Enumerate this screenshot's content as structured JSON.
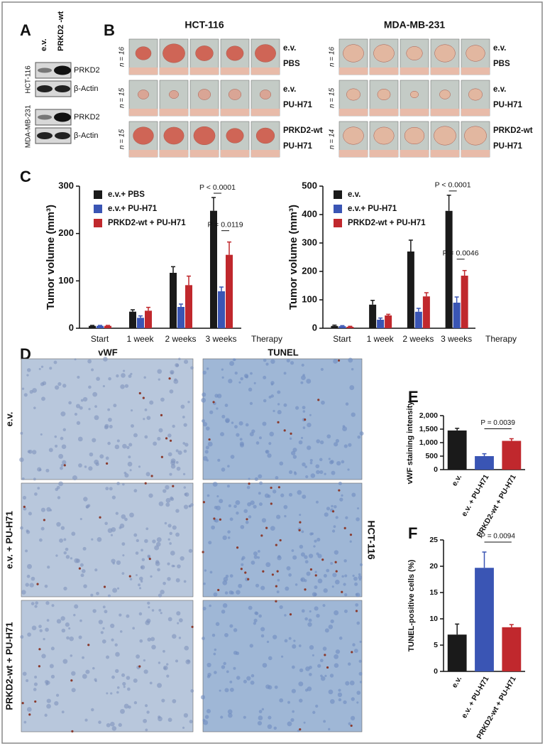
{
  "panel_a": {
    "letter": "A",
    "lanes": [
      "e.v.",
      "PRKD2 -wt"
    ],
    "blots": [
      {
        "cell_line": "HCT-116",
        "bands": [
          "PRKD2",
          "β-Actin"
        ]
      },
      {
        "cell_line": "MDA-MB-231",
        "bands": [
          "PRKD2",
          "β-Actin"
        ]
      }
    ]
  },
  "panel_b": {
    "letter": "B",
    "groups": [
      {
        "title": "HCT-116",
        "rows": [
          {
            "n": "n = 16",
            "labels": [
              "e.v.",
              "PBS"
            ]
          },
          {
            "n": "n = 15",
            "labels": [
              "e.v.",
              "PU-H71"
            ]
          },
          {
            "n": "n = 15",
            "labels": [
              "PRKD2-wt",
              "PU-H71"
            ]
          }
        ]
      },
      {
        "title": "MDA-MB-231",
        "rows": [
          {
            "n": "n = 16",
            "labels": [
              "e.v.",
              "PBS"
            ]
          },
          {
            "n": "n = 15",
            "labels": [
              "e.v.",
              "PU-H71"
            ]
          },
          {
            "n": "n = 14",
            "labels": [
              "PRKD2-wt",
              "PU-H71"
            ]
          }
        ]
      }
    ]
  },
  "panel_d": {
    "letter": "D",
    "columns": [
      "vWF",
      "TUNEL"
    ],
    "rows": [
      "e.v.",
      "e.v. + PU-H71",
      "PRKD2-wt + PU-H71"
    ],
    "side_label": "HCT-116"
  },
  "chart_data": [
    {
      "type": "bar",
      "panel_label": "C",
      "ylabel": "Tumor volume (mm³)",
      "xlabel": "Therapy",
      "categories": [
        "Start",
        "1 week",
        "2 weeks",
        "3 weeks"
      ],
      "series": [
        {
          "name": "e.v.+ PBS",
          "color": "#1a1a1a",
          "values": [
            5,
            35,
            117,
            248
          ],
          "errors": [
            1,
            4,
            13,
            28
          ]
        },
        {
          "name": "e.v.+ PU-H71",
          "color": "#3a55b4",
          "values": [
            5,
            22,
            45,
            78
          ],
          "errors": [
            1,
            4,
            6,
            9
          ]
        },
        {
          "name": "PRKD2-wt + PU-H71",
          "color": "#c0282d",
          "values": [
            5,
            37,
            91,
            155
          ],
          "errors": [
            1,
            7,
            19,
            27
          ]
        }
      ],
      "ylim": [
        0,
        300
      ],
      "yticks": [
        0,
        100,
        200,
        300
      ],
      "annotations": [
        "P < 0.0001",
        "P = 0.0119"
      ]
    },
    {
      "type": "bar",
      "ylabel": "Tumor volume (mm³)",
      "xlabel": "Therapy",
      "categories": [
        "Start",
        "1 week",
        "2 weeks",
        "3 weeks"
      ],
      "series": [
        {
          "name": "e.v.",
          "color": "#1a1a1a",
          "values": [
            8,
            83,
            270,
            413
          ],
          "errors": [
            3,
            15,
            40,
            55
          ]
        },
        {
          "name": "e.v.+ PU-H71",
          "color": "#3a55b4",
          "values": [
            7,
            30,
            58,
            90
          ],
          "errors": [
            2,
            6,
            12,
            20
          ]
        },
        {
          "name": "PRKD2-wt + PU-H71",
          "color": "#c0282d",
          "values": [
            5,
            45,
            112,
            185
          ],
          "errors": [
            2,
            4,
            13,
            18
          ]
        }
      ],
      "ylim": [
        0,
        500
      ],
      "yticks": [
        0,
        100,
        200,
        300,
        400,
        500
      ],
      "annotations": [
        "P < 0.0001",
        "P = 0.0046"
      ]
    },
    {
      "type": "bar",
      "panel_label": "E",
      "ylabel": "vWF staining intensity",
      "categories": [
        "e.v.",
        "e.v. + PU-H71",
        "PRKD2-wt + PU-H71"
      ],
      "values": [
        1450,
        500,
        1065
      ],
      "errors": [
        80,
        90,
        80
      ],
      "colors": [
        "#1a1a1a",
        "#3a55b4",
        "#c0282d"
      ],
      "ylim": [
        0,
        2000
      ],
      "yticks": [
        0,
        500,
        {
          "value": 1000,
          "label": "1,000"
        },
        {
          "value": 1500,
          "label": "1,500"
        },
        {
          "value": 2000,
          "label": "2,000"
        }
      ],
      "annotations": [
        "P = 0.0039"
      ]
    },
    {
      "type": "bar",
      "panel_label": "F",
      "ylabel": "TUNEL-positive cells (%)",
      "categories": [
        "e.v.",
        "e.v. + PU-H71",
        "PRKD2-wt + PU-H71"
      ],
      "values": [
        7,
        19.7,
        8.4
      ],
      "errors": [
        2,
        3,
        0.5
      ],
      "colors": [
        "#1a1a1a",
        "#3a55b4",
        "#c0282d"
      ],
      "ylim": [
        0,
        25
      ],
      "yticks": [
        0,
        5,
        10,
        15,
        20,
        25
      ],
      "annotations": [
        "P = 0.0094"
      ]
    }
  ]
}
